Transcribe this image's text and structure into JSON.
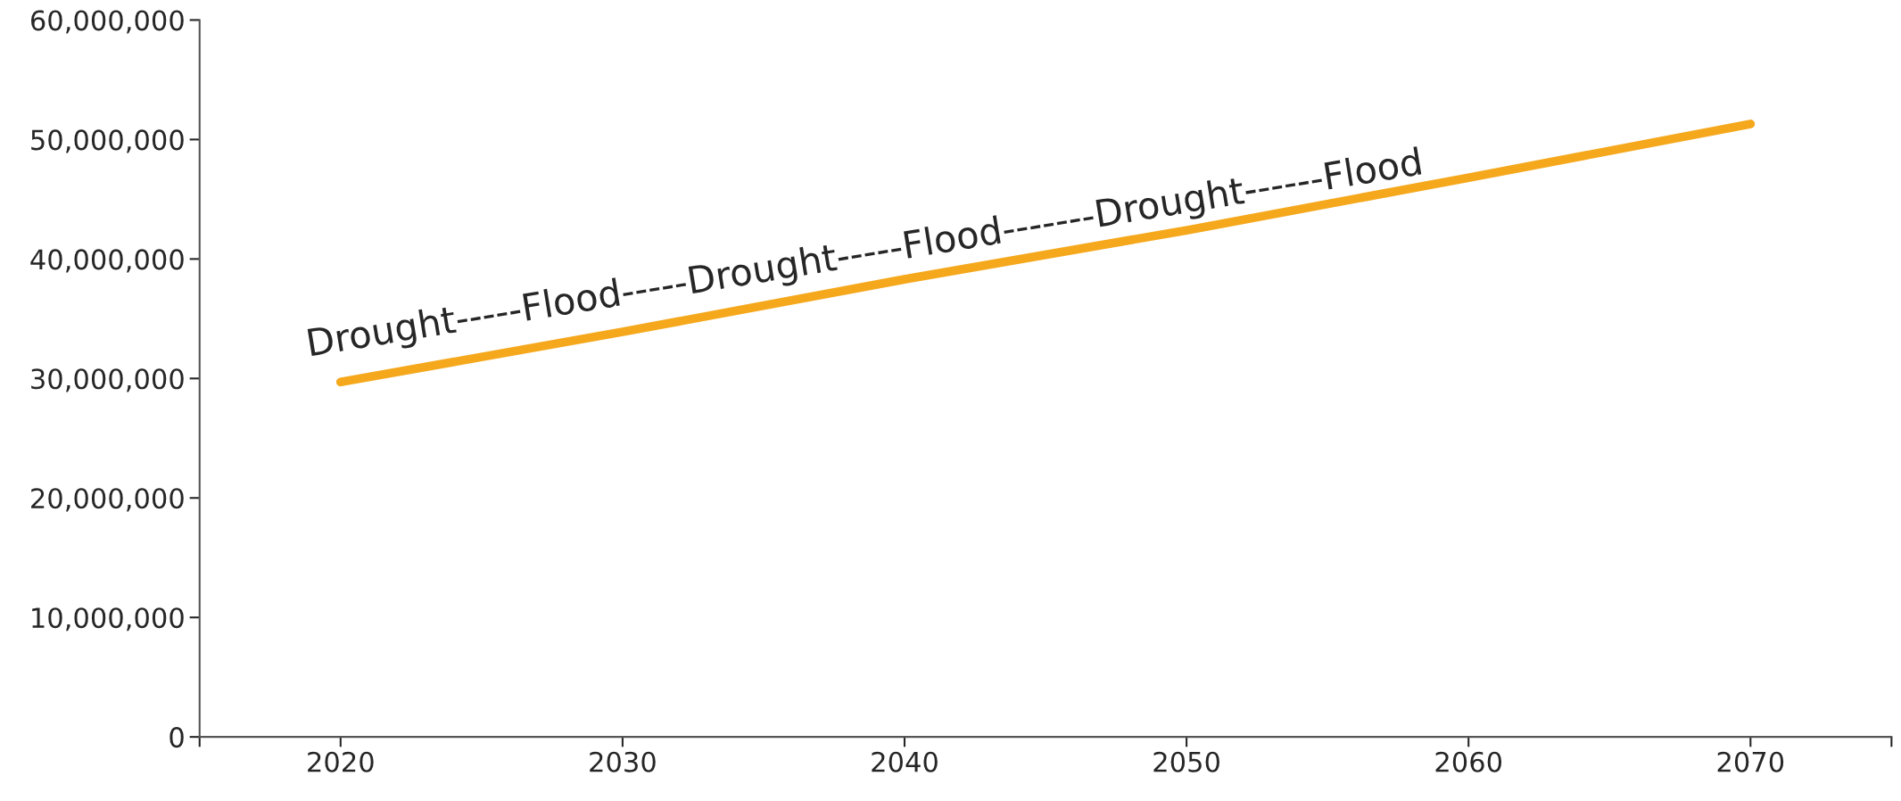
{
  "chart_data": {
    "type": "line",
    "x": [
      2020,
      2030,
      2040,
      2050,
      2060,
      2070
    ],
    "series": [
      {
        "color": "#f5a81c",
        "values": [
          29700000,
          33900000,
          38300000,
          42400000,
          46800000,
          51300000
        ]
      }
    ],
    "xlim": [
      2015,
      2075
    ],
    "xticks": [
      {
        "value": 2015,
        "label": null
      },
      2020,
      2030,
      2040,
      2050,
      2060,
      2070,
      {
        "value": 2075,
        "label": null
      }
    ],
    "ylim": [
      0,
      60000000
    ],
    "yticks": [
      {
        "value": 0,
        "label": "0"
      },
      {
        "value": 10000000,
        "label": "10,000,000"
      },
      {
        "value": 20000000,
        "label": "20,000,000"
      },
      {
        "value": 30000000,
        "label": "30,000,000"
      },
      {
        "value": 40000000,
        "label": "40,000,000"
      },
      {
        "value": 50000000,
        "label": "50,000,000"
      },
      {
        "value": 60000000,
        "label": "60,000,000"
      }
    ],
    "annotations": [
      "Drought-----Flood-----Drought-----Flood-------Drought------Flood"
    ],
    "grid": false,
    "legend": false,
    "marker": "none",
    "line_style": "solid"
  }
}
